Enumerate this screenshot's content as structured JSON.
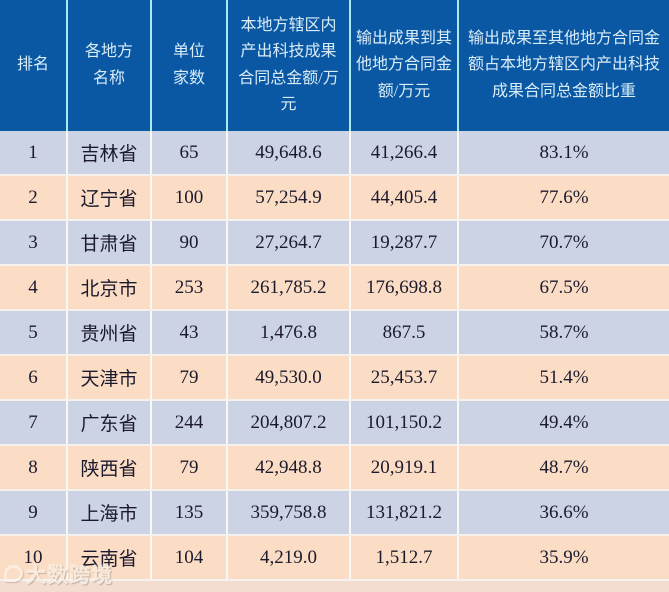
{
  "chart_data": {
    "type": "table",
    "columns": [
      "排名",
      "各地方名称",
      "单位家数",
      "本地方辖区内产出科技成果合同总金额/万元",
      "输出成果到其他地方合同金额/万元",
      "输出成果至其他地方合同金额占本地方辖区内产出科技成果合同总金额比重"
    ],
    "rows": [
      [
        "1",
        "吉林省",
        "65",
        "49,648.6",
        "41,266.4",
        "83.1%"
      ],
      [
        "2",
        "辽宁省",
        "100",
        "57,254.9",
        "44,405.4",
        "77.6%"
      ],
      [
        "3",
        "甘肃省",
        "90",
        "27,264.7",
        "19,287.7",
        "70.7%"
      ],
      [
        "4",
        "北京市",
        "253",
        "261,785.2",
        "176,698.8",
        "67.5%"
      ],
      [
        "5",
        "贵州省",
        "43",
        "1,476.8",
        "867.5",
        "58.7%"
      ],
      [
        "6",
        "天津市",
        "79",
        "49,530.0",
        "25,453.7",
        "51.4%"
      ],
      [
        "7",
        "广东省",
        "244",
        "204,807.2",
        "101,150.2",
        "49.4%"
      ],
      [
        "8",
        "陕西省",
        "79",
        "42,948.8",
        "20,919.1",
        "48.7%"
      ],
      [
        "9",
        "上海市",
        "135",
        "359,758.8",
        "131,821.2",
        "36.6%"
      ],
      [
        "10",
        "云南省",
        "104",
        "4,219.0",
        "1,512.7",
        "35.9%"
      ]
    ]
  },
  "watermark": {
    "text": "大数跨境"
  },
  "colors": {
    "header_bg": "#0a57a4",
    "header_text": "#d9edf8",
    "header_divider": "#a9e9ec",
    "row_blue": "#ccd3e4",
    "row_peach": "#fbdcc4",
    "grid_line": "#f5f2ee",
    "body_text": "#1c1b2e"
  }
}
